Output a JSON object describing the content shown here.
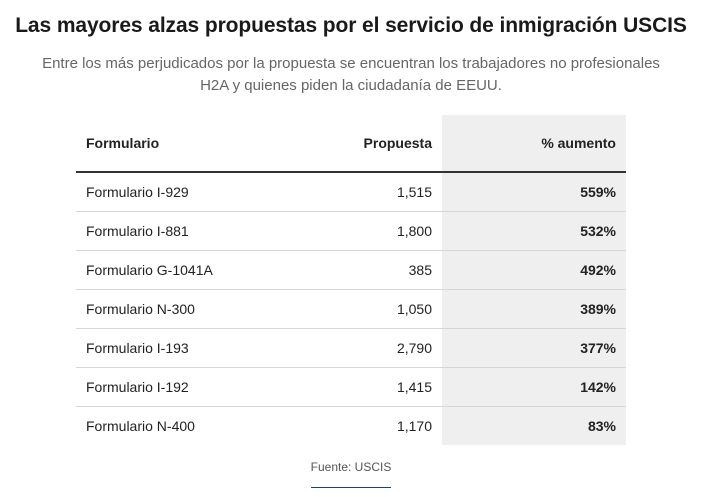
{
  "chart_data": {
    "type": "table",
    "title": "Las mayores alzas propuestas por el servicio de inmigración USCIS",
    "subtitle": "Entre los más perjudicados por la propuesta se encuentran los trabajadores no profesionales H2A y quienes piden la ciudadanía de EEUU.",
    "columns": [
      "Formulario",
      "Propuesta",
      "% aumento"
    ],
    "rows": [
      {
        "form": "Formulario I-929",
        "proposal": "1,515",
        "increase": "559%"
      },
      {
        "form": "Formulario I-881",
        "proposal": "1,800",
        "increase": "532%"
      },
      {
        "form": "Formulario G-1041A",
        "proposal": "385",
        "increase": "492%"
      },
      {
        "form": "Formulario N-300",
        "proposal": "1,050",
        "increase": "389%"
      },
      {
        "form": "Formulario I-193",
        "proposal": "2,790",
        "increase": "377%"
      },
      {
        "form": "Formulario I-192",
        "proposal": "1,415",
        "increase": "142%"
      },
      {
        "form": "Formulario N-400",
        "proposal": "1,170",
        "increase": "83%"
      }
    ],
    "source": "Fuente: USCIS",
    "highlight_column_color": "#efefef",
    "header_rule_color": "#333333"
  }
}
